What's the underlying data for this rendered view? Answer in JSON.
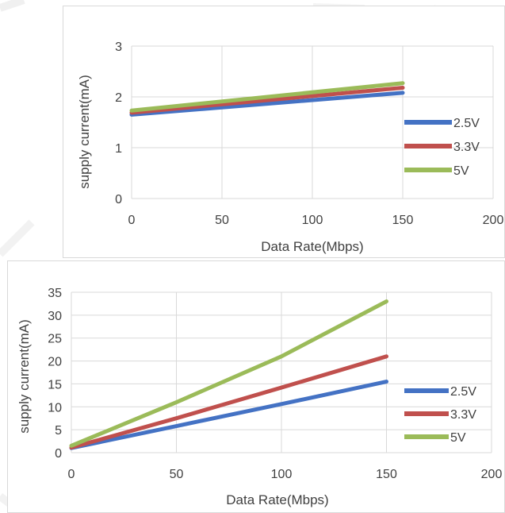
{
  "chart_data": [
    {
      "type": "line",
      "title": "",
      "xlabel": "Data Rate(Mbps)",
      "ylabel": "supply current(mA)",
      "xlim": [
        0,
        200
      ],
      "ylim": [
        0,
        3
      ],
      "xticks": [
        0,
        50,
        100,
        150,
        200
      ],
      "yticks": [
        0,
        1,
        2,
        3
      ],
      "x": [
        0,
        150
      ],
      "grid": true,
      "legend_position": "right",
      "series": [
        {
          "name": "2.5V",
          "color": "#4472c4",
          "values": [
            1.65,
            2.08
          ]
        },
        {
          "name": "3.3V",
          "color": "#c0504d",
          "values": [
            1.69,
            2.18
          ]
        },
        {
          "name": "5V",
          "color": "#9bbb59",
          "values": [
            1.73,
            2.27
          ]
        }
      ]
    },
    {
      "type": "line",
      "title": "",
      "xlabel": "Data Rate(Mbps)",
      "ylabel": "supply current(mA)",
      "xlim": [
        0,
        200
      ],
      "ylim": [
        0,
        35
      ],
      "xticks": [
        0,
        50,
        100,
        150,
        200
      ],
      "yticks": [
        0,
        5,
        10,
        15,
        20,
        25,
        30,
        35
      ],
      "x": [
        0,
        50,
        100,
        150
      ],
      "grid": true,
      "legend_position": "right",
      "series": [
        {
          "name": "2.5V",
          "color": "#4472c4",
          "values": [
            1.0,
            5.8,
            10.6,
            15.5
          ]
        },
        {
          "name": "3.3V",
          "color": "#c0504d",
          "values": [
            1.1,
            7.5,
            14.2,
            21.0
          ]
        },
        {
          "name": "5V",
          "color": "#9bbb59",
          "values": [
            1.5,
            11.0,
            21.0,
            33.0
          ]
        }
      ]
    }
  ]
}
